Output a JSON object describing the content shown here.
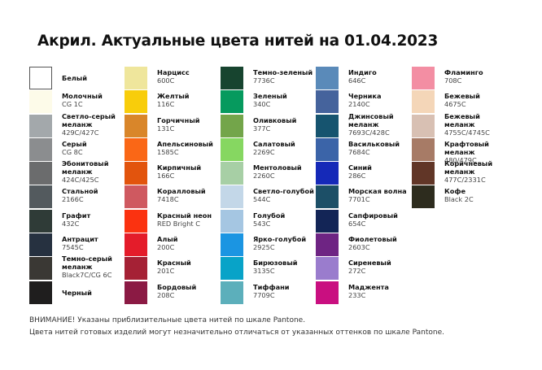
{
  "title": "Акрил. Актуальные цвета нитей на 01.04.2023",
  "columns": [
    [
      {
        "name": "Белый",
        "code": "",
        "color": "#ffffff"
      },
      {
        "name": "Молочный",
        "code": "CG 1C",
        "color": "#fdfbe9"
      },
      {
        "name": "Светло-серый\nмеланж",
        "code": "429C/427C",
        "color": "#a3a8ab"
      },
      {
        "name": "Серый",
        "code": "CG 8C",
        "color": "#8b8d8f"
      },
      {
        "name": "Эбонитовый\nмеланж",
        "code": "424C/425C",
        "color": "#6b6c6d"
      },
      {
        "name": "Стальной",
        "code": "2166C",
        "color": "#535a5e"
      },
      {
        "name": "Графит",
        "code": "432C",
        "color": "#2f3b37"
      },
      {
        "name": "Антрацит",
        "code": "7545C",
        "color": "#263140"
      },
      {
        "name": "Темно-серый\nмеланж",
        "code": "Black7C/CG 6C",
        "color": "#3a3834"
      },
      {
        "name": "Черный",
        "code": "",
        "color": "#1f1e1e"
      }
    ],
    [
      {
        "name": "Нарцисс",
        "code": "600C",
        "color": "#efe69c"
      },
      {
        "name": "Желтый",
        "code": "116C",
        "color": "#f8cd0b"
      },
      {
        "name": "Горчичный",
        "code": "131C",
        "color": "#d9862a"
      },
      {
        "name": "Апельсиновый",
        "code": "1585C",
        "color": "#fa6716"
      },
      {
        "name": "Кирпичный",
        "code": "166C",
        "color": "#e2540d"
      },
      {
        "name": "Коралловый",
        "code": "7418C",
        "color": "#cf5960"
      },
      {
        "name": "Красный неон",
        "code": "RED Bright C",
        "color": "#fb3210"
      },
      {
        "name": "Алый",
        "code": "200C",
        "color": "#e41c2a"
      },
      {
        "name": "Красный",
        "code": "201C",
        "color": "#a52135"
      },
      {
        "name": "Бордовый",
        "code": "208C",
        "color": "#8b1a44"
      }
    ],
    [
      {
        "name": "Темно-зеленый",
        "code": "7736C",
        "color": "#17442f"
      },
      {
        "name": "Зеленый",
        "code": "340C",
        "color": "#069a5e"
      },
      {
        "name": "Оливковый",
        "code": "377C",
        "color": "#73a54a"
      },
      {
        "name": "Салатовый",
        "code": "2269C",
        "color": "#86d761"
      },
      {
        "name": "Ментоловый",
        "code": "2260C",
        "color": "#a7cfa5"
      },
      {
        "name": "Светло-голубой",
        "code": "544C",
        "color": "#c3d7e8"
      },
      {
        "name": "Голубой",
        "code": "543C",
        "color": "#a5c6e2"
      },
      {
        "name": "Ярко-голубой",
        "code": "2925C",
        "color": "#1b95e2"
      },
      {
        "name": "Бирюзовый",
        "code": "3135C",
        "color": "#08a3c8"
      },
      {
        "name": "Тиффани",
        "code": "7709C",
        "color": "#5cafbb"
      }
    ],
    [
      {
        "name": "Индиго",
        "code": "646C",
        "color": "#5a8ab9"
      },
      {
        "name": "Черника",
        "code": "2140C",
        "color": "#45639c"
      },
      {
        "name": "Джинсовый\nмеланж",
        "code": "7693C/428C",
        "color": "#16546f"
      },
      {
        "name": "Васильковый",
        "code": "7684C",
        "color": "#3b64a8"
      },
      {
        "name": "Синий",
        "code": "286C",
        "color": "#1529b8"
      },
      {
        "name": "Морская волна",
        "code": "7701C",
        "color": "#1c4f67"
      },
      {
        "name": "Сапфировый",
        "code": "654C",
        "color": "#132556"
      },
      {
        "name": "Фиолетовый",
        "code": "2603C",
        "color": "#6e2483"
      },
      {
        "name": "Сиреневый",
        "code": "272C",
        "color": "#9a7ccd"
      },
      {
        "name": "Маджента",
        "code": "233C",
        "color": "#c90f80"
      }
    ],
    [
      {
        "name": "Фламинго",
        "code": "708C",
        "color": "#f38ea3"
      },
      {
        "name": "Бежевый",
        "code": "4675C",
        "color": "#f4d6b8"
      },
      {
        "name": "Бежевый\nмеланж",
        "code": "4755C/4745C",
        "color": "#d8c0b3"
      },
      {
        "name": "Крафтовый меланж",
        "code": "480/479C",
        "color": "#a77b66"
      },
      {
        "name": "Коричневый\nмеланж",
        "code": "477C/2331C",
        "color": "#613627"
      },
      {
        "name": "Кофе",
        "code": "Black 2C",
        "color": "#2d2c1e"
      }
    ]
  ],
  "notes": [
    "ВНИМАНИЕ! Указаны приблизительные цвета нитей по шкале Pantone.",
    "Цвета нитей готовых изделий могут незначительно отличаться от указанных оттенков по шкале Pantone."
  ]
}
